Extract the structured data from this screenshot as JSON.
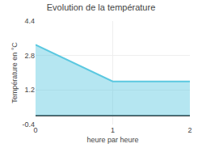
{
  "chart_data": {
    "type": "area",
    "title": "Evolution de la température",
    "x": [
      0,
      1,
      2
    ],
    "values": [
      3.3,
      1.6,
      1.6
    ],
    "color": "#5bc8e0",
    "xlabel": "heure par heure",
    "ylabel": "Température en °C",
    "xlim": [
      0,
      2
    ],
    "ylim": [
      -0.4,
      4.4
    ],
    "xticks": [
      0,
      1,
      2
    ],
    "yticks": [
      -0.4,
      1.2,
      2.8,
      4.4
    ],
    "grid": true
  }
}
